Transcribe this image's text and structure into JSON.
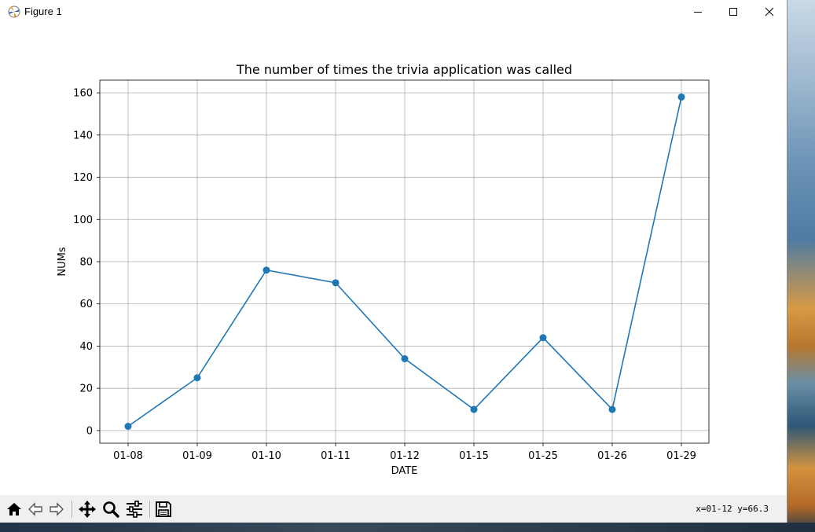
{
  "window": {
    "title": "Figure 1"
  },
  "toolbar": {
    "buttons": [
      {
        "name": "home-icon",
        "tip": "Reset original view"
      },
      {
        "name": "back-icon",
        "tip": "Back to previous view"
      },
      {
        "name": "forward-icon",
        "tip": "Forward to next view"
      },
      {
        "name": "pan-icon",
        "tip": "Pan axes"
      },
      {
        "name": "zoom-icon",
        "tip": "Zoom to rectangle"
      },
      {
        "name": "configure-subplots-icon",
        "tip": "Configure subplots"
      },
      {
        "name": "save-icon",
        "tip": "Save the figure"
      }
    ],
    "coords": "x=01-12 y=66.3"
  },
  "colors": {
    "line": "#1f77b4",
    "grid": "#b0b0b0",
    "axis": "#000000"
  },
  "chart_data": {
    "type": "line",
    "title": "The number of times the trivia application was called",
    "xlabel": "DATE",
    "ylabel": "NUMs",
    "categories": [
      "01-08",
      "01-09",
      "01-10",
      "01-11",
      "01-12",
      "01-15",
      "01-25",
      "01-26",
      "01-29"
    ],
    "series": [
      {
        "values": [
          2,
          25,
          76,
          70,
          34,
          10,
          44,
          10,
          158
        ]
      }
    ],
    "ylim": [
      -6,
      166
    ],
    "yticks": [
      0,
      20,
      40,
      60,
      80,
      100,
      120,
      140,
      160
    ],
    "grid": true,
    "markers": "circle"
  }
}
